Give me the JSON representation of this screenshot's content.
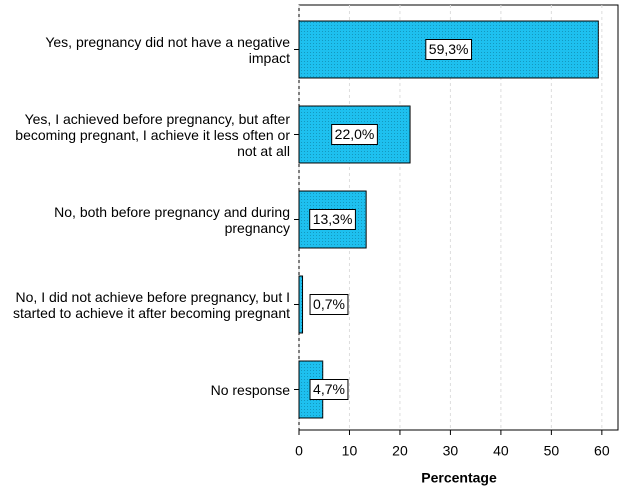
{
  "chart_data": {
    "type": "barh",
    "categories": [
      "Yes, pregnancy did not have a negative impact",
      "Yes, I achieved before pregnancy, but after becoming pregnant, I achieve it less often or not at all",
      "No, both before pregnancy and during pregnancy",
      "No, I did not achieve before pregnancy, but I started to achieve it after becoming pregnant",
      "No response"
    ],
    "values": [
      59.3,
      22.0,
      13.3,
      0.7,
      4.7
    ],
    "value_labels": [
      "59,3%",
      "22,0%",
      "13,3%",
      "0,7%",
      "4,7%"
    ],
    "color": "#1ec0ef",
    "xlabel": "Percentage",
    "xlim": [
      0,
      63.2
    ],
    "xticks": [
      0,
      10,
      20,
      30,
      40,
      50,
      60
    ],
    "grid": true
  }
}
